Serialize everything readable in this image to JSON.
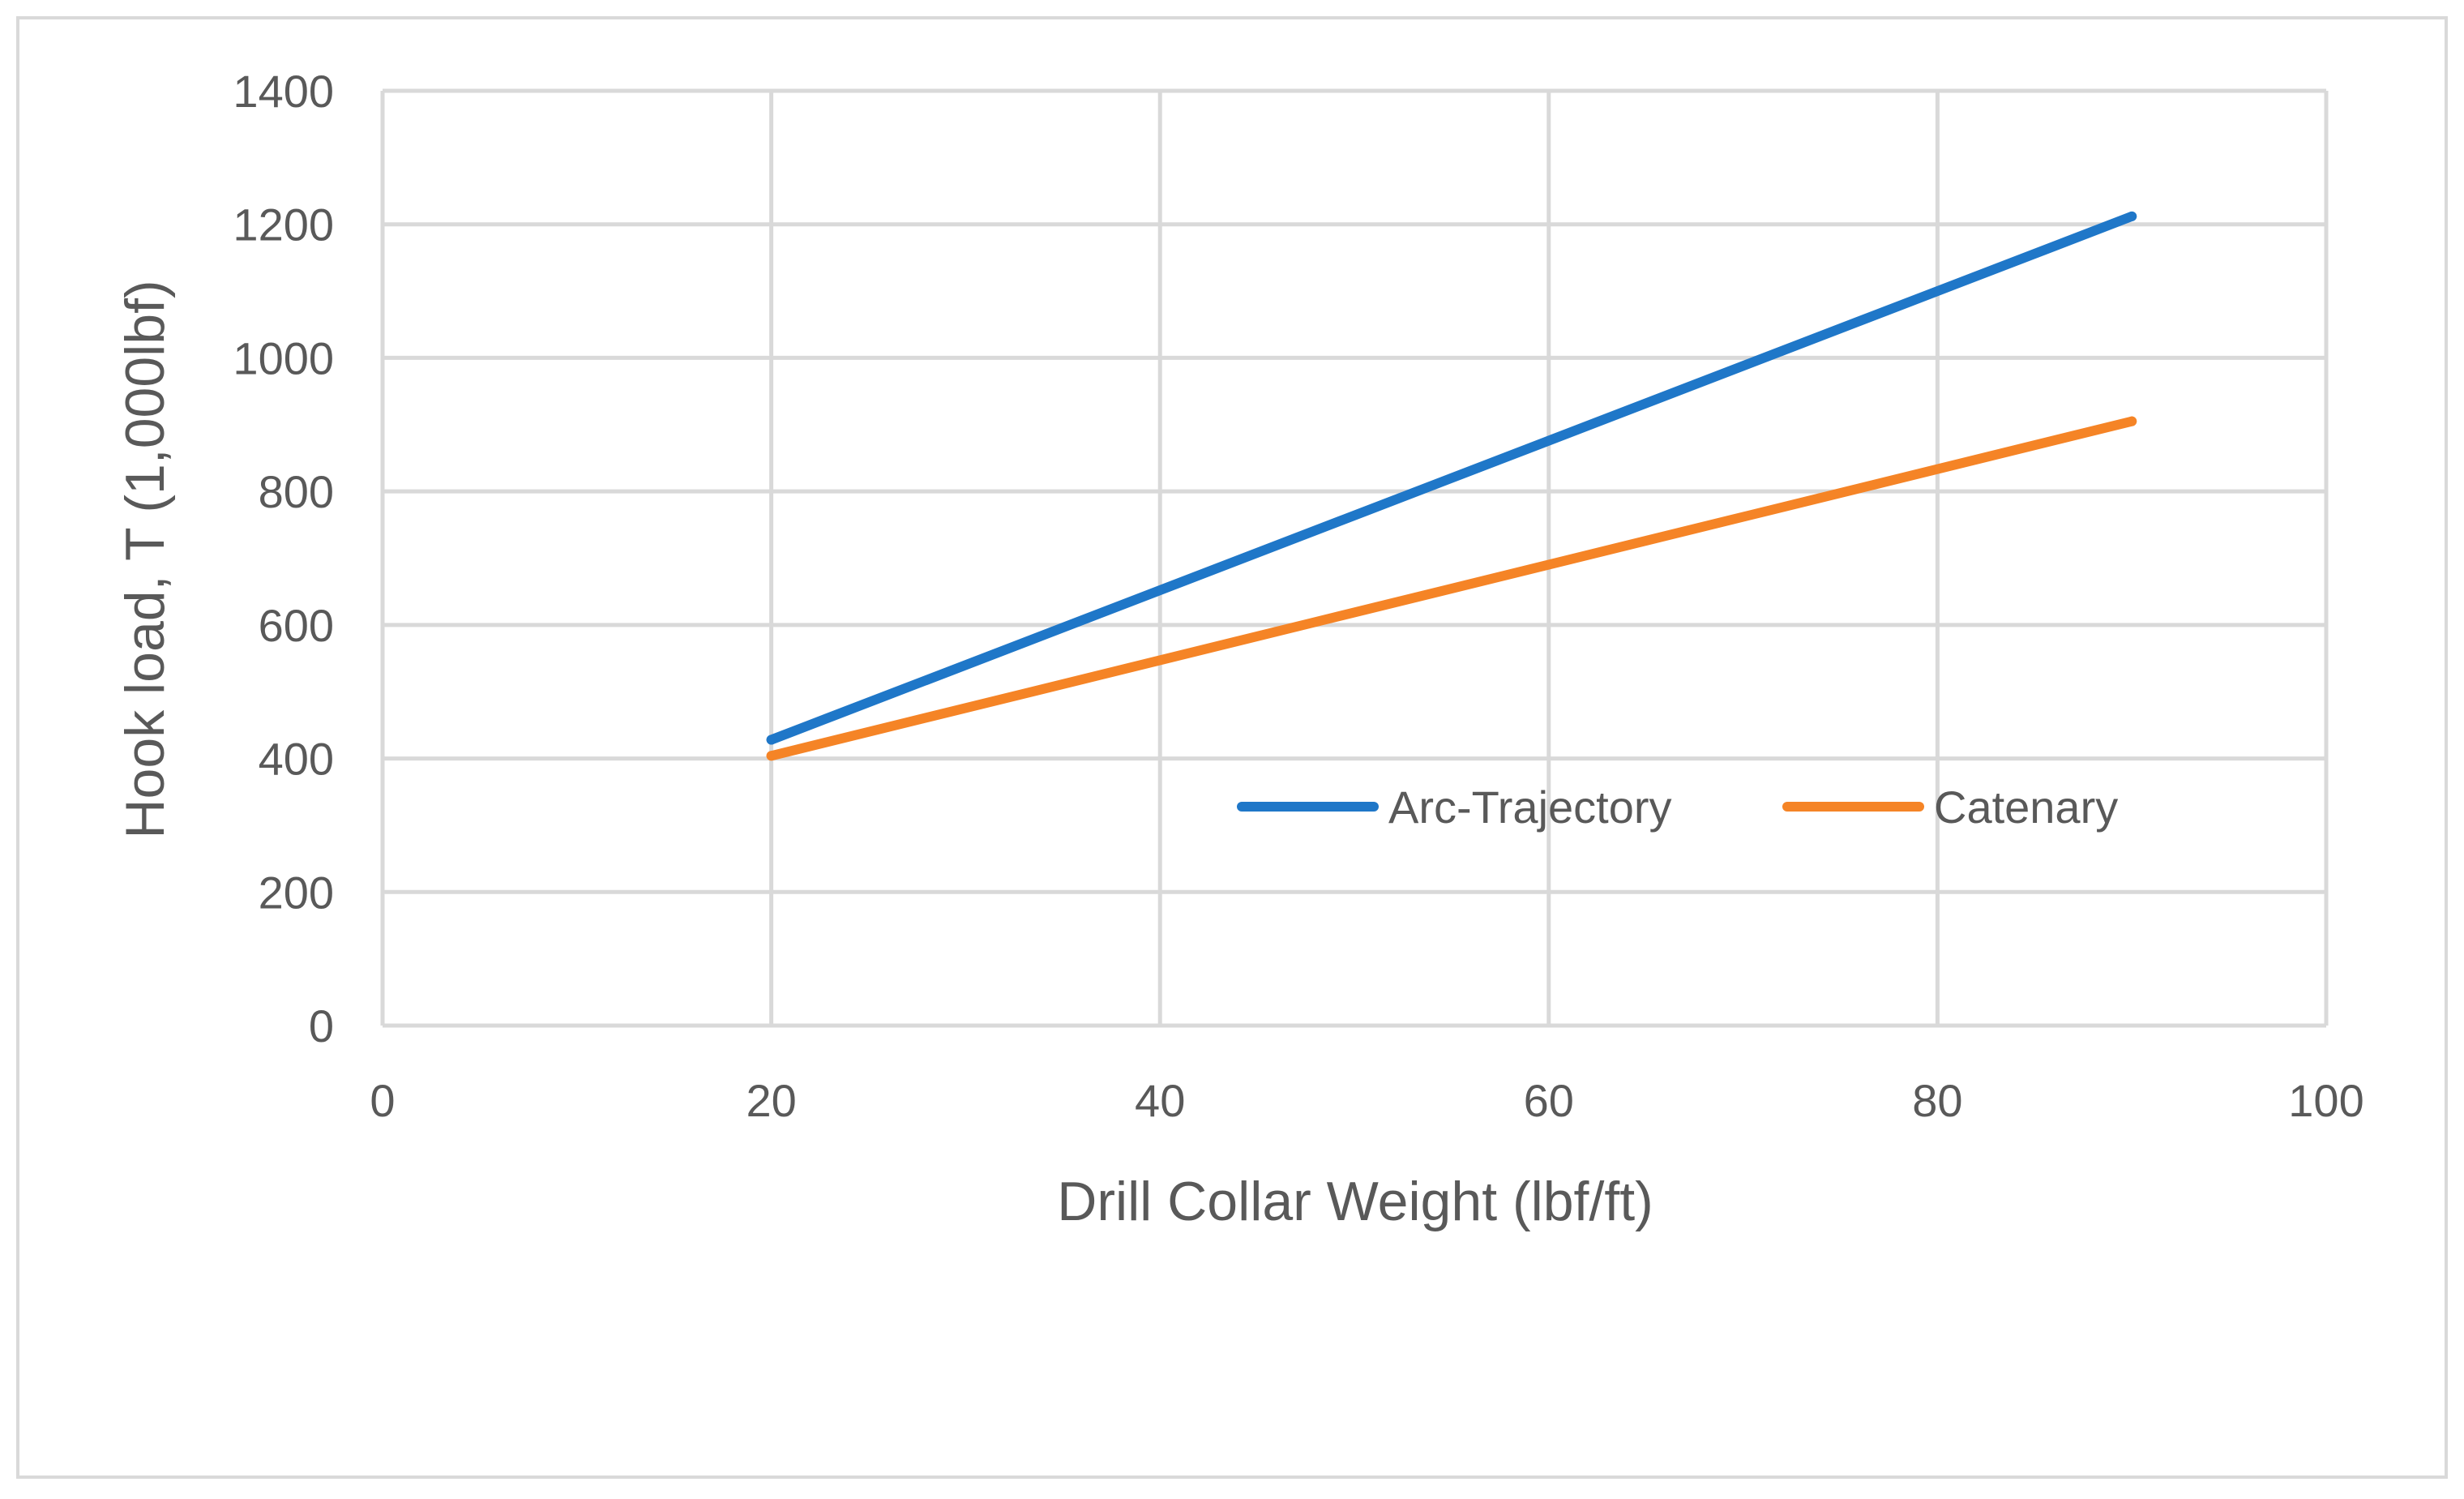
{
  "chart_data": {
    "type": "line",
    "title": "",
    "xlabel": "Drill Collar Weight (lbf/ft)",
    "ylabel": "Hook load, T (1,000lbf)",
    "xlim": [
      0,
      100
    ],
    "ylim": [
      0,
      1400
    ],
    "x_ticks": [
      0,
      20,
      40,
      60,
      80,
      100
    ],
    "y_ticks": [
      0,
      200,
      400,
      600,
      800,
      1000,
      1200,
      1400
    ],
    "x_tick_labels": [
      "0",
      "20",
      "40",
      "60",
      "80",
      "100"
    ],
    "y_tick_labels": [
      "0",
      "200",
      "400",
      "600",
      "800",
      "1000",
      "1200",
      "1400"
    ],
    "grid": true,
    "legend_position": "center-right",
    "series": [
      {
        "name": "Arc-Trajectory",
        "color": "#1f77c8",
        "x": [
          20,
          90
        ],
        "y": [
          428,
          1212
        ]
      },
      {
        "name": "Catenary",
        "color": "#f58426",
        "x": [
          20,
          90
        ],
        "y": [
          404,
          905
        ]
      }
    ],
    "colors": {
      "grid": "#d9d9d9",
      "text": "#595959",
      "frame": "#d9d9d9"
    }
  }
}
